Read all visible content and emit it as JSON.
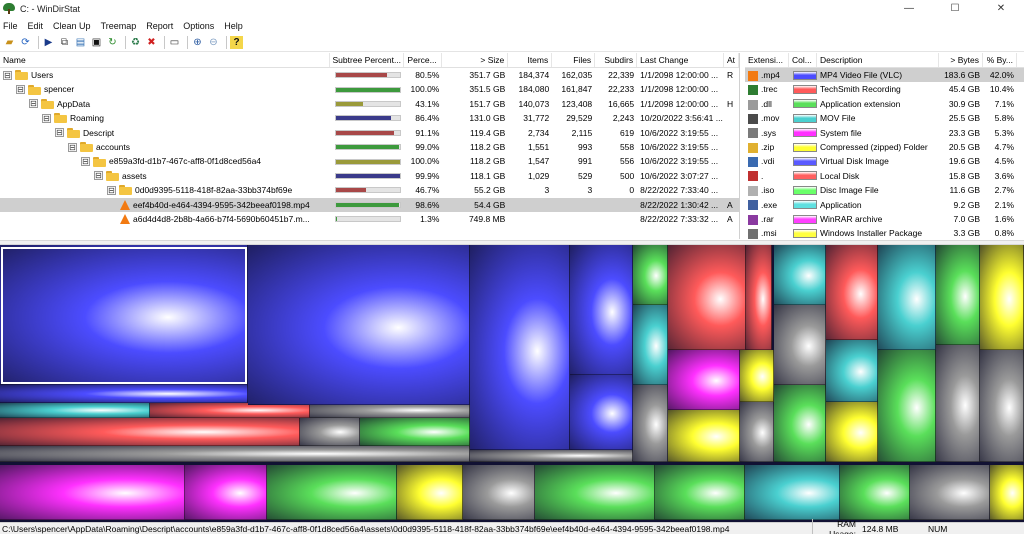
{
  "window": {
    "title": "C: - WinDirStat",
    "minimize": "—",
    "maximize": "☐",
    "close": "✕"
  },
  "menu": [
    "File",
    "Edit",
    "Clean Up",
    "Treemap",
    "Report",
    "Options",
    "Help"
  ],
  "toolbar_icons": [
    "open-icon",
    "refresh-icon",
    "play-icon",
    "copy-icon",
    "explore-icon",
    "cmd-icon",
    "refresh-all-icon",
    "recycle-icon",
    "delete-icon",
    "properties-icon",
    "zoom-in-icon",
    "zoom-out-icon",
    "help-icon"
  ],
  "tree": {
    "headers": {
      "name": "Name",
      "subtree": "Subtree Percent...",
      "pct": "Perce...",
      "size": "> Size",
      "items": "Items",
      "files": "Files",
      "subdirs": "Subdirs",
      "last": "Last Change",
      "attr": "At"
    },
    "rows": [
      {
        "name": "Users",
        "level": 0,
        "kind": "folder",
        "exp": "⊟",
        "subtree_pct": 80.5,
        "bar_color": "#a84848",
        "pct": "80.5%",
        "size": "351.7 GB",
        "items": "184,374",
        "files": "162,035",
        "subdirs": "22,339",
        "last": "1/1/2098 12:00:00 ...",
        "attr": "R"
      },
      {
        "name": "spencer",
        "level": 1,
        "kind": "folder",
        "exp": "⊟",
        "subtree_pct": 100.0,
        "bar_color": "#3d9a3d",
        "pct": "100.0%",
        "size": "351.5 GB",
        "items": "184,080",
        "files": "161,847",
        "subdirs": "22,233",
        "last": "1/1/2098 12:00:00 ...",
        "attr": ""
      },
      {
        "name": "AppData",
        "level": 2,
        "kind": "folder",
        "exp": "⊟",
        "subtree_pct": 43.1,
        "bar_color": "#9a9a3a",
        "pct": "43.1%",
        "size": "151.7 GB",
        "items": "140,073",
        "files": "123,408",
        "subdirs": "16,665",
        "last": "1/1/2098 12:00:00 ...",
        "attr": "H"
      },
      {
        "name": "Roaming",
        "level": 3,
        "kind": "folder",
        "exp": "⊟",
        "subtree_pct": 86.4,
        "bar_color": "#3a3a8a",
        "pct": "86.4%",
        "size": "131.0 GB",
        "items": "31,772",
        "files": "29,529",
        "subdirs": "2,243",
        "last": "10/20/2022 3:56:41 ...",
        "attr": ""
      },
      {
        "name": "Descript",
        "level": 4,
        "kind": "folder",
        "exp": "⊟",
        "subtree_pct": 91.1,
        "bar_color": "#a84848",
        "pct": "91.1%",
        "size": "119.4 GB",
        "items": "2,734",
        "files": "2,115",
        "subdirs": "619",
        "last": "10/6/2022 3:19:55 ...",
        "attr": ""
      },
      {
        "name": "accounts",
        "level": 5,
        "kind": "folder",
        "exp": "⊟",
        "subtree_pct": 99.0,
        "bar_color": "#3d9a3d",
        "pct": "99.0%",
        "size": "118.2 GB",
        "items": "1,551",
        "files": "993",
        "subdirs": "558",
        "last": "10/6/2022 3:19:55 ...",
        "attr": ""
      },
      {
        "name": "e859a3fd-d1b7-467c-aff8-0f1d8ced56a4",
        "level": 6,
        "kind": "folder",
        "exp": "⊟",
        "subtree_pct": 100.0,
        "bar_color": "#9a9a3a",
        "pct": "100.0%",
        "size": "118.2 GB",
        "items": "1,547",
        "files": "991",
        "subdirs": "556",
        "last": "10/6/2022 3:19:55 ...",
        "attr": ""
      },
      {
        "name": "assets",
        "level": 7,
        "kind": "folder",
        "exp": "⊟",
        "subtree_pct": 99.9,
        "bar_color": "#3a3a8a",
        "pct": "99.9%",
        "size": "118.1 GB",
        "items": "1,029",
        "files": "529",
        "subdirs": "500",
        "last": "10/6/2022 3:07:27 ...",
        "attr": ""
      },
      {
        "name": "0d0d9395-5118-418f-82aa-33bb374bf69e",
        "level": 8,
        "kind": "folder",
        "exp": "⊟",
        "subtree_pct": 46.7,
        "bar_color": "#a84848",
        "pct": "46.7%",
        "size": "55.2 GB",
        "items": "3",
        "files": "3",
        "subdirs": "0",
        "last": "8/22/2022 7:33:40 ...",
        "attr": ""
      },
      {
        "name": "eef4b40d-e464-4394-9595-342beeaf0198.mp4",
        "level": 9,
        "kind": "vlc",
        "exp": "",
        "subtree_pct": 98.6,
        "bar_color": "#3d9a3d",
        "pct": "98.6%",
        "size": "54.4 GB",
        "items": "",
        "files": "",
        "subdirs": "",
        "last": "8/22/2022 1:30:42 ...",
        "attr": "A",
        "selected": true
      },
      {
        "name": "a6d4d4d8-2b8b-4a66-b7f4-5690b60451b7.m...",
        "level": 9,
        "kind": "vlc",
        "exp": "",
        "subtree_pct": 1.3,
        "bar_color": "#3d9a3d",
        "pct": "1.3%",
        "size": "749.8 MB",
        "items": "",
        "files": "",
        "subdirs": "",
        "last": "8/22/2022 7:33:32 ...",
        "attr": "A"
      }
    ]
  },
  "extensions": {
    "headers": {
      "ext": "Extensi...",
      "color": "Col...",
      "desc": "Description",
      "bytes": "> Bytes",
      "pct": "% By..."
    },
    "rows": [
      {
        "ext": ".mp4",
        "icon": "vlc-icon",
        "icon_color": "#f27a12",
        "color": "#4c4cff",
        "desc": "MP4 Video File (VLC)",
        "bytes": "183.6 GB",
        "pct": "42.0%",
        "selected": true
      },
      {
        "ext": ".trec",
        "icon": "techsmith-icon",
        "icon_color": "#2e7d32",
        "color": "#ff5a5a",
        "desc": "TechSmith Recording",
        "bytes": "45.4 GB",
        "pct": "10.4%"
      },
      {
        "ext": ".dll",
        "icon": "dll-icon",
        "icon_color": "#9a9a9a",
        "color": "#5adf5a",
        "desc": "Application extension",
        "bytes": "30.9 GB",
        "pct": "7.1%"
      },
      {
        "ext": ".mov",
        "icon": "mov-icon",
        "icon_color": "#4a4a4a",
        "color": "#4ad0d0",
        "desc": "MOV File",
        "bytes": "25.5 GB",
        "pct": "5.8%"
      },
      {
        "ext": ".sys",
        "icon": "sys-icon",
        "icon_color": "#7a7a7a",
        "color": "#ff30ff",
        "desc": "System file",
        "bytes": "23.3 GB",
        "pct": "5.3%"
      },
      {
        "ext": ".zip",
        "icon": "zip-icon",
        "icon_color": "#e0b030",
        "color": "#ffff30",
        "desc": "Compressed (zipped) Folder",
        "bytes": "20.5 GB",
        "pct": "4.7%"
      },
      {
        "ext": ".vdi",
        "icon": "vdi-icon",
        "icon_color": "#3a6ab0",
        "color": "#5a5aff",
        "desc": "Virtual Disk Image",
        "bytes": "19.6 GB",
        "pct": "4.5%"
      },
      {
        "ext": ".",
        "icon": "cube-icon",
        "icon_color": "#c03030",
        "color": "#ff6060",
        "desc": "Local Disk",
        "bytes": "15.8 GB",
        "pct": "3.6%"
      },
      {
        "ext": ".iso",
        "icon": "iso-icon",
        "icon_color": "#b0b0b0",
        "color": "#6aff6a",
        "desc": "Disc Image File",
        "bytes": "11.6 GB",
        "pct": "2.7%"
      },
      {
        "ext": ".exe",
        "icon": "exe-icon",
        "icon_color": "#4060a0",
        "color": "#60e0e0",
        "desc": "Application",
        "bytes": "9.2 GB",
        "pct": "2.1%"
      },
      {
        "ext": ".rar",
        "icon": "rar-icon",
        "icon_color": "#8a3aa0",
        "color": "#ff40ff",
        "desc": "WinRAR archive",
        "bytes": "7.0 GB",
        "pct": "1.6%"
      },
      {
        "ext": ".msi",
        "icon": "msi-icon",
        "icon_color": "#707070",
        "color": "#ffff40",
        "desc": "Windows Installer Package",
        "bytes": "3.3 GB",
        "pct": "0.8%"
      }
    ]
  },
  "status": {
    "path": "C:\\Users\\spencer\\AppData\\Roaming\\Descript\\accounts\\e859a3fd-d1b7-467c-aff8-0f1d8ced56a4\\assets\\0d0d9395-5118-418f-82aa-33bb374bf69e\\eef4b40d-e464-4394-9595-342beeaf0198.mp4",
    "ram_label": "RAM Usage:",
    "ram_value": "124.8 MB",
    "num": "NUM"
  },
  "colors": {
    "mp4": "#4c4cff",
    "trec": "#ff5a5a",
    "dll": "#5adf5a",
    "mov": "#4ad0d0",
    "sys": "#ff30ff",
    "zip": "#ffff30",
    "gray": "#9a9a9a"
  }
}
